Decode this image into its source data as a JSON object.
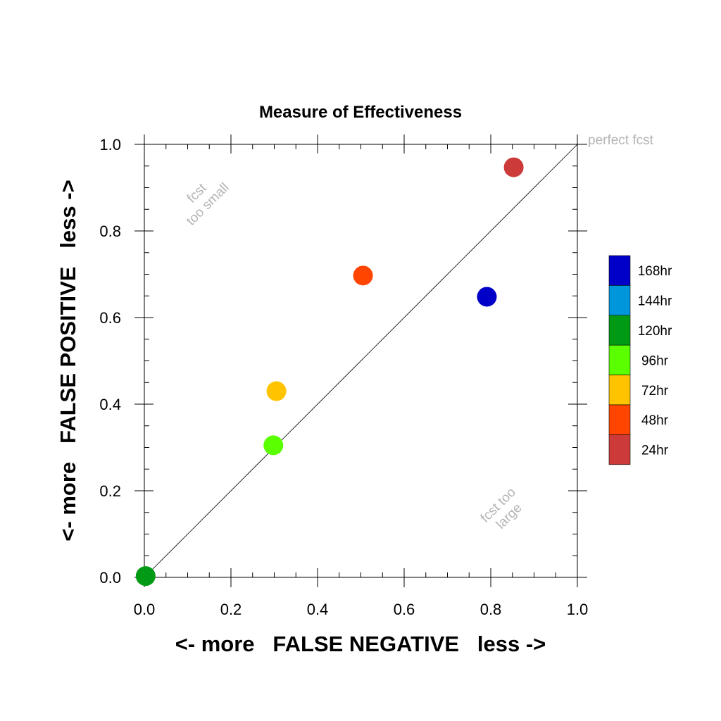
{
  "chart_data": {
    "type": "scatter",
    "title": "Measure of Effectiveness",
    "xlabel": "<- more   FALSE NEGATIVE   less ->",
    "ylabel": "<- more   FALSE POSITIVE   less ->",
    "xlim": [
      0,
      1
    ],
    "ylim": [
      0,
      1
    ],
    "xticks": [
      "0.0",
      "0.2",
      "0.4",
      "0.6",
      "0.8",
      "1.0"
    ],
    "yticks": [
      "0.0",
      "0.2",
      "0.4",
      "0.6",
      "0.8",
      "1.0"
    ],
    "grid": false,
    "legend_position": "right",
    "reference_line": {
      "from": [
        0,
        0
      ],
      "to": [
        1,
        1
      ]
    },
    "annotations": {
      "perfect": "perfect fcst",
      "too_small": [
        "fcst",
        "too small"
      ],
      "too_large": [
        "fcst too",
        "large"
      ]
    },
    "series": [
      {
        "name": "24hr",
        "color": "#cc3a3a",
        "x": 0.853,
        "y": 0.947
      },
      {
        "name": "48hr",
        "color": "#ff4500",
        "x": 0.505,
        "y": 0.697
      },
      {
        "name": "72hr",
        "color": "#ffc300",
        "x": 0.305,
        "y": 0.43
      },
      {
        "name": "96hr",
        "color": "#5aff00",
        "x": 0.298,
        "y": 0.305
      },
      {
        "name": "120hr",
        "color": "#009a14",
        "x": 0.003,
        "y": 0.003
      },
      {
        "name": "144hr",
        "color": "#0096dc",
        "x": null,
        "y": null
      },
      {
        "name": "168hr",
        "color": "#0000c8",
        "x": 0.791,
        "y": 0.648
      }
    ]
  }
}
